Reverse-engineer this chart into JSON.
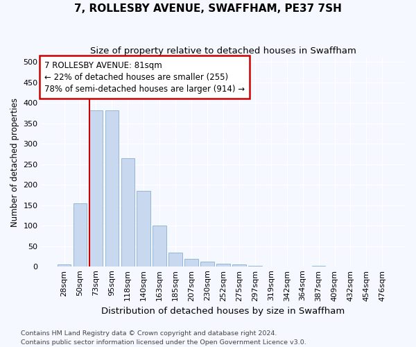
{
  "title": "7, ROLLESBY AVENUE, SWAFFHAM, PE37 7SH",
  "subtitle": "Size of property relative to detached houses in Swaffham",
  "xlabel": "Distribution of detached houses by size in Swaffham",
  "ylabel": "Number of detached properties",
  "categories": [
    "28sqm",
    "50sqm",
    "73sqm",
    "95sqm",
    "118sqm",
    "140sqm",
    "163sqm",
    "185sqm",
    "207sqm",
    "230sqm",
    "252sqm",
    "275sqm",
    "297sqm",
    "319sqm",
    "342sqm",
    "364sqm",
    "387sqm",
    "409sqm",
    "432sqm",
    "454sqm",
    "476sqm"
  ],
  "bar_heights": [
    5,
    155,
    381,
    381,
    265,
    185,
    100,
    35,
    20,
    12,
    7,
    5,
    2,
    0,
    0,
    0,
    3,
    0,
    0,
    0,
    0
  ],
  "bar_color": "#c8d8ee",
  "bar_edge_color": "#8aaed4",
  "vline_x": 1.575,
  "vline_color": "#cc0000",
  "annotation_text": "7 ROLLESBY AVENUE: 81sqm\n← 22% of detached houses are smaller (255)\n78% of semi-detached houses are larger (914) →",
  "annotation_box_facecolor": "#ffffff",
  "annotation_box_edgecolor": "#cc0000",
  "ylim": [
    0,
    510
  ],
  "yticks": [
    0,
    50,
    100,
    150,
    200,
    250,
    300,
    350,
    400,
    450,
    500
  ],
  "footer_line1": "Contains HM Land Registry data © Crown copyright and database right 2024.",
  "footer_line2": "Contains public sector information licensed under the Open Government Licence v3.0.",
  "bg_color": "#f5f8ff",
  "title_fontsize": 11,
  "subtitle_fontsize": 9.5,
  "xlabel_fontsize": 9.5,
  "ylabel_fontsize": 8.5,
  "tick_fontsize": 8,
  "annotation_fontsize": 8.5,
  "footer_fontsize": 6.8
}
